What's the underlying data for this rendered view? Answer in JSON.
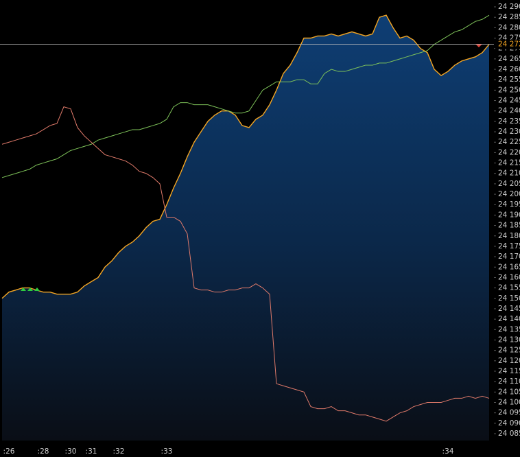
{
  "chart_data": {
    "type": "line",
    "categories": [
      null,
      ":26",
      null,
      null,
      null,
      null,
      ":28",
      null,
      null,
      null,
      ":30",
      null,
      null,
      ":31",
      null,
      null,
      null,
      ":32",
      null,
      null,
      null,
      null,
      null,
      null,
      ":33",
      null,
      null,
      null,
      null,
      null,
      null,
      null,
      null,
      null,
      null,
      null,
      null,
      null,
      null,
      null,
      null,
      null,
      null,
      null,
      null,
      null,
      null,
      null,
      null,
      null,
      null,
      null,
      null,
      null,
      null,
      null,
      null,
      null,
      null,
      null,
      null,
      null,
      null,
      null,
      null,
      ":34",
      null,
      null,
      null,
      null,
      null,
      null
    ],
    "series": [
      {
        "color": "#f5a623",
        "area": true,
        "values": [
          24150,
          24153,
          24154,
          24155,
          24155,
          24154,
          24153,
          24153,
          24152,
          24152,
          24152,
          24153,
          24156,
          24158,
          24160,
          24165,
          24168,
          24172,
          24175,
          24177,
          24180,
          24184,
          24187,
          24188,
          24195,
          24203,
          24210,
          24218,
          24225,
          24230,
          24235,
          24238,
          24240,
          24240,
          24238,
          24233,
          24232,
          24236,
          24238,
          24243,
          24250,
          24258,
          24262,
          24268,
          24275,
          24275,
          24276,
          24276,
          24277,
          24276,
          24277,
          24278,
          24277,
          24276,
          24277,
          24285,
          24286,
          24280,
          24275,
          24276,
          24274,
          24270,
          24268,
          24260,
          24257,
          24259,
          24262,
          24264,
          24265,
          24266,
          24268,
          24272
        ]
      },
      {
        "color": "#7fc45a",
        "values": [
          24208,
          24209,
          24210,
          24211,
          24212,
          24214,
          24215,
          24216,
          24217,
          24219,
          24221,
          24222,
          24223,
          24224,
          24226,
          24227,
          24228,
          24229,
          24230,
          24231,
          24231,
          24232,
          24233,
          24234,
          24236,
          24242,
          24244,
          24244,
          24243,
          24243,
          24243,
          24242,
          24241,
          24240,
          24239,
          24239,
          24240,
          24245,
          24250,
          24252,
          24254,
          24254,
          24254,
          24255,
          24255,
          24253,
          24253,
          24258,
          24260,
          24259,
          24259,
          24260,
          24261,
          24262,
          24262,
          24263,
          24263,
          24264,
          24265,
          24266,
          24267,
          24268,
          24269,
          24272,
          24274,
          24276,
          24278,
          24279,
          24281,
          24283,
          24284,
          24286
        ]
      },
      {
        "color": "#e07a6a",
        "values": [
          24224,
          24225,
          24226,
          24227,
          24228,
          24229,
          24231,
          24233,
          24234,
          24242,
          24241,
          24232,
          24228,
          24225,
          24222,
          24219,
          24218,
          24217,
          24216,
          24214,
          24211,
          24210,
          24208,
          24205,
          24189,
          24189,
          24187,
          24181,
          24155,
          24154,
          24154,
          24153,
          24153,
          24154,
          24154,
          24155,
          24155,
          24157,
          24155,
          24152,
          24109,
          24108,
          24107,
          24106,
          24105,
          24098,
          24097,
          24097,
          24098,
          24096,
          24096,
          24095,
          24094,
          24094,
          24093,
          24092,
          24091,
          24093,
          24095,
          24096,
          24098,
          24099,
          24100,
          24100,
          24100,
          24101,
          24102,
          24102,
          24103,
          24102,
          24103,
          24102
        ]
      }
    ],
    "last_price": {
      "value": 24272,
      "label": "24 272",
      "color": "#f5a623"
    },
    "ylim": [
      24085,
      24290
    ],
    "yticks": [
      {
        "value": 24085,
        "label": "24 085"
      },
      {
        "value": 24090,
        "label": "24 090"
      },
      {
        "value": 24095,
        "label": "24 095"
      },
      {
        "value": 24100,
        "label": "24 100"
      },
      {
        "value": 24105,
        "label": "24 105"
      },
      {
        "value": 24110,
        "label": "24 110"
      },
      {
        "value": 24115,
        "label": "24 115"
      },
      {
        "value": 24120,
        "label": "24 120"
      },
      {
        "value": 24125,
        "label": "24 125"
      },
      {
        "value": 24130,
        "label": "24 130"
      },
      {
        "value": 24135,
        "label": "24 135"
      },
      {
        "value": 24140,
        "label": "24 140"
      },
      {
        "value": 24145,
        "label": "24 145"
      },
      {
        "value": 24150,
        "label": "24 150"
      },
      {
        "value": 24155,
        "label": "24 155"
      },
      {
        "value": 24160,
        "label": "24 160"
      },
      {
        "value": 24165,
        "label": "24 165"
      },
      {
        "value": 24170,
        "label": "24 170"
      },
      {
        "value": 24175,
        "label": "24 175"
      },
      {
        "value": 24180,
        "label": "24 180"
      },
      {
        "value": 24185,
        "label": "24 185"
      },
      {
        "value": 24190,
        "label": "24 190"
      },
      {
        "value": 24195,
        "label": "24 195"
      },
      {
        "value": 24200,
        "label": "24 200"
      },
      {
        "value": 24205,
        "label": "24 205"
      },
      {
        "value": 24210,
        "label": "24 210"
      },
      {
        "value": 24215,
        "label": "24 215"
      },
      {
        "value": 24220,
        "label": "24 220"
      },
      {
        "value": 24225,
        "label": "24 225"
      },
      {
        "value": 24230,
        "label": "24 230"
      },
      {
        "value": 24235,
        "label": "24 235"
      },
      {
        "value": 24240,
        "label": "24 240"
      },
      {
        "value": 24245,
        "label": "24 245"
      },
      {
        "value": 24250,
        "label": "24 250"
      },
      {
        "value": 24255,
        "label": "24 255"
      },
      {
        "value": 24260,
        "label": "24 260"
      },
      {
        "value": 24265,
        "label": "24 265"
      },
      {
        "value": 24270,
        "label": "24 270"
      },
      {
        "value": 24275,
        "label": "24 275"
      },
      {
        "value": 24280,
        "label": "24 280"
      },
      {
        "value": 24285,
        "label": "24 285"
      },
      {
        "value": 24290,
        "label": "24 290"
      }
    ]
  }
}
